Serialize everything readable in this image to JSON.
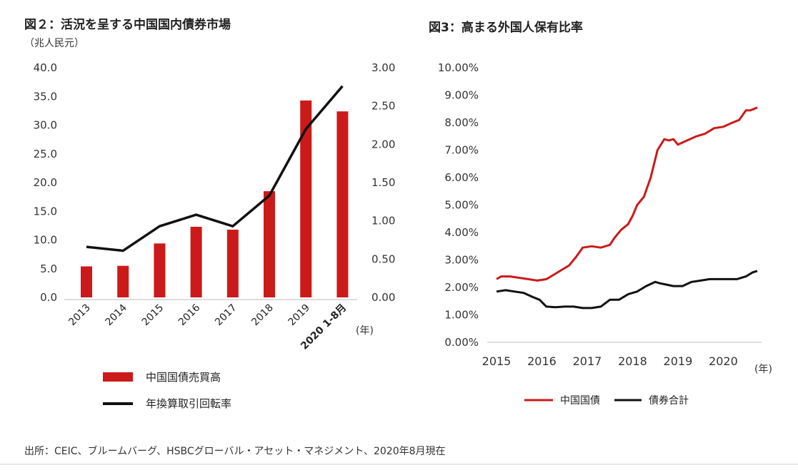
{
  "figure2": {
    "title": "図２：活況を呈する中国国内債券市場",
    "unit": "（兆人民元）",
    "year_suffix": "(年)",
    "legend_bar": "中国国債売買高",
    "legend_line": "年換算取引回転率",
    "accent": "#cc1a1a",
    "line_color": "#111111"
  },
  "figure3": {
    "title": "図3：高まる外国人保有比率",
    "year_suffix": "(年)",
    "legend_red": "中国国債",
    "legend_black": "債券合計",
    "accent": "#cc1a1a",
    "line_color": "#111111"
  },
  "source": "出所：CEIC、ブルームバーグ、HSBCグローバル・アセット・マネジメント、2020年8月現在",
  "chart_data": [
    {
      "type": "bar",
      "title": "図２：活況を呈する中国国内債券市場",
      "categories": [
        "2013",
        "2014",
        "2015",
        "2016",
        "2017",
        "2018",
        "2019",
        "2020 1-8月"
      ],
      "series": [
        {
          "name": "中国国債売買高",
          "axis": "left",
          "values": [
            5.4,
            5.5,
            9.4,
            12.3,
            11.8,
            18.5,
            34.3,
            32.4
          ]
        },
        {
          "name": "年換算取引回転率",
          "axis": "right",
          "kind": "line",
          "values": [
            0.66,
            0.61,
            0.93,
            1.08,
            0.93,
            1.33,
            2.2,
            2.76
          ]
        }
      ],
      "ylim_left": [
        0,
        40
      ],
      "ylim_right": [
        0,
        3
      ],
      "yticks_left": [
        "0.0",
        "5.0",
        "10.0",
        "15.0",
        "20.0",
        "25.0",
        "30.0",
        "35.0",
        "40.0"
      ],
      "yticks_right": [
        "0.00",
        "0.50",
        "1.00",
        "1.50",
        "2.00",
        "2.50",
        "3.00"
      ],
      "ylabel_left": "（兆人民元）",
      "xlabel": "(年)"
    },
    {
      "type": "line",
      "title": "図3：高まる外国人保有比率",
      "xlim": [
        2015,
        2020.75
      ],
      "xticks": [
        "2015",
        "2016",
        "2017",
        "2018",
        "2019",
        "2020"
      ],
      "ylim": [
        0,
        10
      ],
      "yticks": [
        "0.00%",
        "1.00%",
        "2.00%",
        "3.00%",
        "4.00%",
        "5.00%",
        "6.00%",
        "7.00%",
        "8.00%",
        "9.00%",
        "10.00%"
      ],
      "xlabel": "(年)",
      "series": [
        {
          "name": "中国国債",
          "color": "#cc1a1a",
          "x": [
            2015.0,
            2015.1,
            2015.3,
            2015.5,
            2015.7,
            2015.9,
            2016.1,
            2016.2,
            2016.4,
            2016.6,
            2016.75,
            2016.9,
            2017.1,
            2017.3,
            2017.5,
            2017.6,
            2017.75,
            2017.9,
            2018.0,
            2018.1,
            2018.25,
            2018.4,
            2018.55,
            2018.7,
            2018.8,
            2018.9,
            2019.0,
            2019.2,
            2019.4,
            2019.6,
            2019.8,
            2020.0,
            2020.2,
            2020.35,
            2020.5,
            2020.6,
            2020.75
          ],
          "y": [
            2.3,
            2.4,
            2.4,
            2.35,
            2.3,
            2.25,
            2.3,
            2.4,
            2.6,
            2.8,
            3.1,
            3.45,
            3.5,
            3.45,
            3.55,
            3.8,
            4.1,
            4.3,
            4.6,
            5.0,
            5.3,
            6.0,
            7.0,
            7.4,
            7.35,
            7.4,
            7.2,
            7.35,
            7.5,
            7.6,
            7.8,
            7.85,
            8.0,
            8.1,
            8.45,
            8.45,
            8.55
          ]
        },
        {
          "name": "債券合計",
          "color": "#111111",
          "x": [
            2015.0,
            2015.2,
            2015.4,
            2015.6,
            2015.8,
            2015.95,
            2016.1,
            2016.3,
            2016.5,
            2016.7,
            2016.9,
            2017.1,
            2017.3,
            2017.5,
            2017.7,
            2017.9,
            2018.1,
            2018.3,
            2018.5,
            2018.6,
            2018.75,
            2018.9,
            2019.1,
            2019.3,
            2019.5,
            2019.7,
            2019.9,
            2020.1,
            2020.3,
            2020.5,
            2020.65,
            2020.75
          ],
          "y": [
            1.85,
            1.9,
            1.85,
            1.8,
            1.65,
            1.55,
            1.3,
            1.28,
            1.3,
            1.3,
            1.25,
            1.25,
            1.3,
            1.55,
            1.55,
            1.75,
            1.85,
            2.05,
            2.2,
            2.15,
            2.1,
            2.05,
            2.05,
            2.2,
            2.25,
            2.3,
            2.3,
            2.3,
            2.3,
            2.4,
            2.55,
            2.6
          ]
        }
      ]
    }
  ]
}
